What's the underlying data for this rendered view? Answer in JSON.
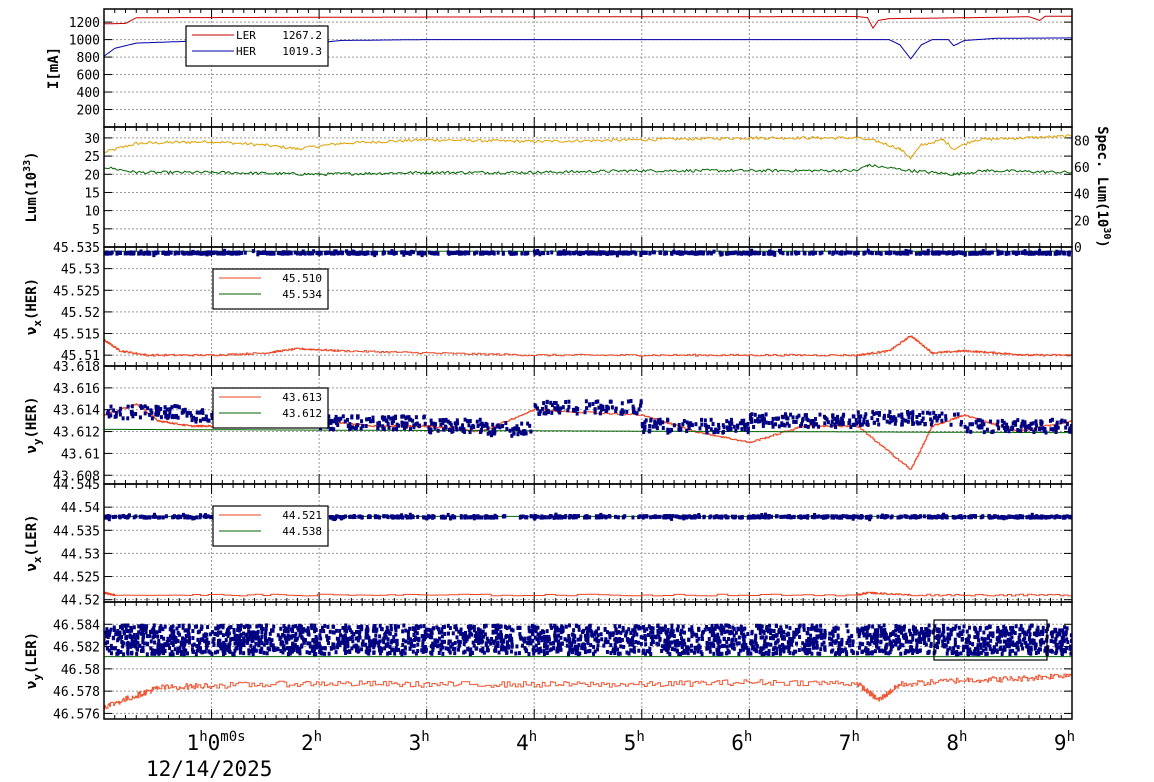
{
  "chart_data": {
    "type": "line",
    "x_ticks": [
      {
        "h": 1,
        "label": "1",
        "sup": "h",
        "tail": "0",
        "tail_sup": "m",
        "tail2": "0s"
      },
      {
        "h": 2,
        "label": "2",
        "sup": "h"
      },
      {
        "h": 3,
        "label": "3",
        "sup": "h"
      },
      {
        "h": 4,
        "label": "4",
        "sup": "h"
      },
      {
        "h": 5,
        "label": "5",
        "sup": "h"
      },
      {
        "h": 6,
        "label": "6",
        "sup": "h"
      },
      {
        "h": 7,
        "label": "7",
        "sup": "h"
      },
      {
        "h": 8,
        "label": "8",
        "sup": "h"
      },
      {
        "h": 9,
        "label": "9",
        "sup": "h"
      }
    ],
    "xlim_hours": [
      0,
      9
    ],
    "date_label": "12/14/2025",
    "panels": [
      {
        "id": "current",
        "ylabel": "I[mA]",
        "ylim": [
          0,
          1350
        ],
        "yticks": [
          200,
          400,
          600,
          800,
          1000,
          1200
        ],
        "series": [
          {
            "name": "LER",
            "value_label": "1267.2",
            "color": "#cc0000",
            "style": "line",
            "points": [
              [
                0,
                1180
              ],
              [
                0.2,
                1185
              ],
              [
                0.3,
                1250
              ],
              [
                1,
                1252
              ],
              [
                2,
                1255
              ],
              [
                3,
                1258
              ],
              [
                4,
                1260
              ],
              [
                5,
                1262
              ],
              [
                6,
                1262
              ],
              [
                7.0,
                1264
              ],
              [
                7.1,
                1250
              ],
              [
                7.15,
                1130
              ],
              [
                7.2,
                1220
              ],
              [
                7.3,
                1240
              ],
              [
                8,
                1250
              ],
              [
                8.3,
                1255
              ],
              [
                8.6,
                1262
              ],
              [
                8.7,
                1220
              ],
              [
                8.75,
                1266
              ],
              [
                9,
                1267
              ]
            ]
          },
          {
            "name": "HER",
            "value_label": "1019.3",
            "color": "#0000aa",
            "style": "line",
            "points": [
              [
                0,
                810
              ],
              [
                0.1,
                900
              ],
              [
                0.3,
                960
              ],
              [
                1,
                990
              ],
              [
                1.5,
                960
              ],
              [
                1.7,
                900
              ],
              [
                1.9,
                950
              ],
              [
                2.2,
                990
              ],
              [
                3,
                1000
              ],
              [
                4,
                1000
              ],
              [
                5,
                1000
              ],
              [
                6,
                1000
              ],
              [
                7,
                1000
              ],
              [
                7.3,
                1000
              ],
              [
                7.4,
                940
              ],
              [
                7.5,
                780
              ],
              [
                7.6,
                940
              ],
              [
                7.7,
                1000
              ],
              [
                7.85,
                1000
              ],
              [
                7.9,
                930
              ],
              [
                8.0,
                990
              ],
              [
                8.3,
                1015
              ],
              [
                9,
                1019
              ]
            ]
          }
        ],
        "legend": {
          "position": "top-left"
        }
      },
      {
        "id": "luminosity",
        "ylabel": "Lum(10",
        "ylabel_sup": "33",
        "ylabel_tail": ")",
        "ylim": [
          0,
          33
        ],
        "yticks": [
          5,
          10,
          15,
          20,
          25,
          30
        ],
        "y2label": "Spec. Lum(10",
        "y2label_sup": "30",
        "y2label_tail": ")",
        "y2lim": [
          0,
          90
        ],
        "y2ticks": [
          0,
          20,
          40,
          60,
          80
        ],
        "series": [
          {
            "name": "",
            "color": "#e0a000",
            "style": "line",
            "points": [
              [
                0,
                26
              ],
              [
                0.3,
                28.5
              ],
              [
                1,
                29
              ],
              [
                1.5,
                28
              ],
              [
                1.8,
                27
              ],
              [
                2.2,
                28.5
              ],
              [
                3,
                29.5
              ],
              [
                4,
                29
              ],
              [
                5,
                29.5
              ],
              [
                6,
                30
              ],
              [
                7,
                30
              ],
              [
                7.2,
                29
              ],
              [
                7.4,
                27
              ],
              [
                7.5,
                24.5
              ],
              [
                7.6,
                28
              ],
              [
                7.8,
                29.5
              ],
              [
                7.9,
                27
              ],
              [
                8.1,
                29.5
              ],
              [
                9,
                30.5
              ]
            ]
          },
          {
            "name": "",
            "color": "#006600",
            "style": "line",
            "points": [
              [
                0,
                22
              ],
              [
                0.3,
                20.5
              ],
              [
                1,
                20.5
              ],
              [
                2,
                20
              ],
              [
                3,
                20.5
              ],
              [
                4,
                20.5
              ],
              [
                5,
                21
              ],
              [
                6,
                21
              ],
              [
                7,
                21
              ],
              [
                7.1,
                22.5
              ],
              [
                7.5,
                21
              ],
              [
                7.9,
                20
              ],
              [
                8.2,
                21
              ],
              [
                9,
                20.5
              ]
            ]
          }
        ],
        "legend": {
          "position": "none"
        }
      },
      {
        "id": "nux-her",
        "ylabel": "ν",
        "ylabel_sub": "x",
        "ylabel_tail": "(HER)",
        "ylim": [
          45.5075,
          45.535
        ],
        "yticks": [
          45.51,
          45.515,
          45.52,
          45.525,
          45.53,
          45.535
        ],
        "ytick_labels": [
          "45.51",
          "45.515",
          "45.52",
          "45.525",
          "45.53",
          "45.535"
        ],
        "series": [
          {
            "name": "",
            "value_label": "45.510",
            "color": "#ee4422",
            "style": "step",
            "points": [
              [
                0,
                45.5135
              ],
              [
                0.15,
                45.511
              ],
              [
                0.4,
                45.51
              ],
              [
                1.0,
                45.51
              ],
              [
                1.5,
                45.5105
              ],
              [
                1.8,
                45.5115
              ],
              [
                2.2,
                45.511
              ],
              [
                3,
                45.5105
              ],
              [
                4,
                45.51
              ],
              [
                5,
                45.51
              ],
              [
                6,
                45.51
              ],
              [
                7,
                45.51
              ],
              [
                7.3,
                45.511
              ],
              [
                7.5,
                45.5145
              ],
              [
                7.7,
                45.5105
              ],
              [
                8.0,
                45.511
              ],
              [
                8.3,
                45.5105
              ],
              [
                8.6,
                45.51
              ],
              [
                9,
                45.51
              ]
            ]
          },
          {
            "name": "",
            "value_label": "45.534",
            "color": "#006600",
            "style": "line",
            "points": [
              [
                0,
                45.534
              ],
              [
                9,
                45.534
              ]
            ]
          },
          {
            "name": "",
            "color": "#000080",
            "style": "dots",
            "base": 45.5336,
            "spread": 0.0003
          }
        ],
        "legend": {
          "position": "top-left"
        }
      },
      {
        "id": "nuy-her",
        "ylabel": "ν",
        "ylabel_sub": "y",
        "ylabel_tail": "(HER)",
        "ylim": [
          43.6072,
          43.618
        ],
        "yticks": [
          43.608,
          43.61,
          43.612,
          43.614,
          43.616,
          43.618
        ],
        "ytick_labels": [
          "43.608",
          "43.61",
          "43.612",
          "43.614",
          "43.616",
          "43.618"
        ],
        "series": [
          {
            "name": "",
            "value_label": "43.613",
            "color": "#ee4422",
            "style": "step",
            "points": [
              [
                0,
                43.6135
              ],
              [
                0.3,
                43.6145
              ],
              [
                0.5,
                43.613
              ],
              [
                0.8,
                43.6125
              ],
              [
                1,
                43.6125
              ],
              [
                2,
                43.613
              ],
              [
                2.5,
                43.6125
              ],
              [
                3,
                43.6125
              ],
              [
                3.5,
                43.612
              ],
              [
                4,
                43.614
              ],
              [
                5,
                43.6135
              ],
              [
                5.5,
                43.612
              ],
              [
                6,
                43.611
              ],
              [
                6.5,
                43.6125
              ],
              [
                7,
                43.6125
              ],
              [
                7.5,
                43.6085
              ],
              [
                7.7,
                43.6125
              ],
              [
                8,
                43.6135
              ],
              [
                8.5,
                43.612
              ],
              [
                9,
                43.613
              ]
            ]
          },
          {
            "name": "",
            "value_label": "43.612",
            "color": "#006600",
            "style": "line",
            "points": [
              [
                0,
                43.6122
              ],
              [
                9,
                43.6119
              ]
            ]
          },
          {
            "name": "",
            "color": "#000080",
            "style": "dots",
            "base": 43.6132,
            "spread": 0.0012
          }
        ],
        "legend": {
          "position": "top-left"
        }
      },
      {
        "id": "nux-ler",
        "ylabel": "ν",
        "ylabel_sub": "x",
        "ylabel_tail": "(LER)",
        "ylim": [
          44.5195,
          44.545
        ],
        "yticks": [
          44.52,
          44.525,
          44.53,
          44.535,
          44.54,
          44.545
        ],
        "ytick_labels": [
          "44.52",
          "44.525",
          "44.53",
          "44.535",
          "44.54",
          "44.545"
        ],
        "series": [
          {
            "name": "",
            "value_label": "44.521",
            "color": "#ee4422",
            "style": "step",
            "points": [
              [
                0,
                44.5215
              ],
              [
                0.1,
                44.521
              ],
              [
                3,
                44.521
              ],
              [
                7,
                44.521
              ],
              [
                7.1,
                44.5215
              ],
              [
                7.5,
                44.521
              ],
              [
                9,
                44.521
              ]
            ]
          },
          {
            "name": "",
            "value_label": "44.538",
            "color": "#006600",
            "style": "line",
            "points": [
              [
                0,
                44.538
              ],
              [
                9,
                44.538
              ]
            ]
          },
          {
            "name": "",
            "color": "#000080",
            "style": "dots",
            "base": 44.5379,
            "spread": 0.0003
          }
        ],
        "legend": {
          "position": "top-left"
        }
      },
      {
        "id": "nuy-ler",
        "ylabel": "ν",
        "ylabel_sub": "y",
        "ylabel_tail": "(LER)",
        "ylim": [
          46.5755,
          46.586
        ],
        "yticks": [
          46.576,
          46.578,
          46.58,
          46.582,
          46.584
        ],
        "ytick_labels": [
          "46.576",
          "46.578",
          "46.58",
          "46.582",
          "46.584"
        ],
        "series": [
          {
            "name": "",
            "color": "#ee5533",
            "style": "step",
            "points": [
              [
                0,
                46.5766
              ],
              [
                0.3,
                46.5776
              ],
              [
                0.5,
                46.5783
              ],
              [
                1,
                46.5785
              ],
              [
                2,
                46.5787
              ],
              [
                3,
                46.5786
              ],
              [
                4,
                46.5786
              ],
              [
                5,
                46.5786
              ],
              [
                6,
                46.5788
              ],
              [
                7,
                46.5787
              ],
              [
                7.2,
                46.5772
              ],
              [
                7.4,
                46.5786
              ],
              [
                8,
                46.579
              ],
              [
                8.5,
                46.5791
              ],
              [
                9,
                46.5795
              ]
            ]
          },
          {
            "name": "",
            "color": "#006600",
            "style": "line",
            "points": [
              [
                0,
                46.5811
              ],
              [
                9,
                46.5811
              ]
            ]
          },
          {
            "name": "",
            "color": "#000080",
            "style": "dots",
            "base": 46.5826,
            "spread": 0.0013
          }
        ],
        "legend": {
          "position": "bottom-right"
        }
      }
    ]
  }
}
